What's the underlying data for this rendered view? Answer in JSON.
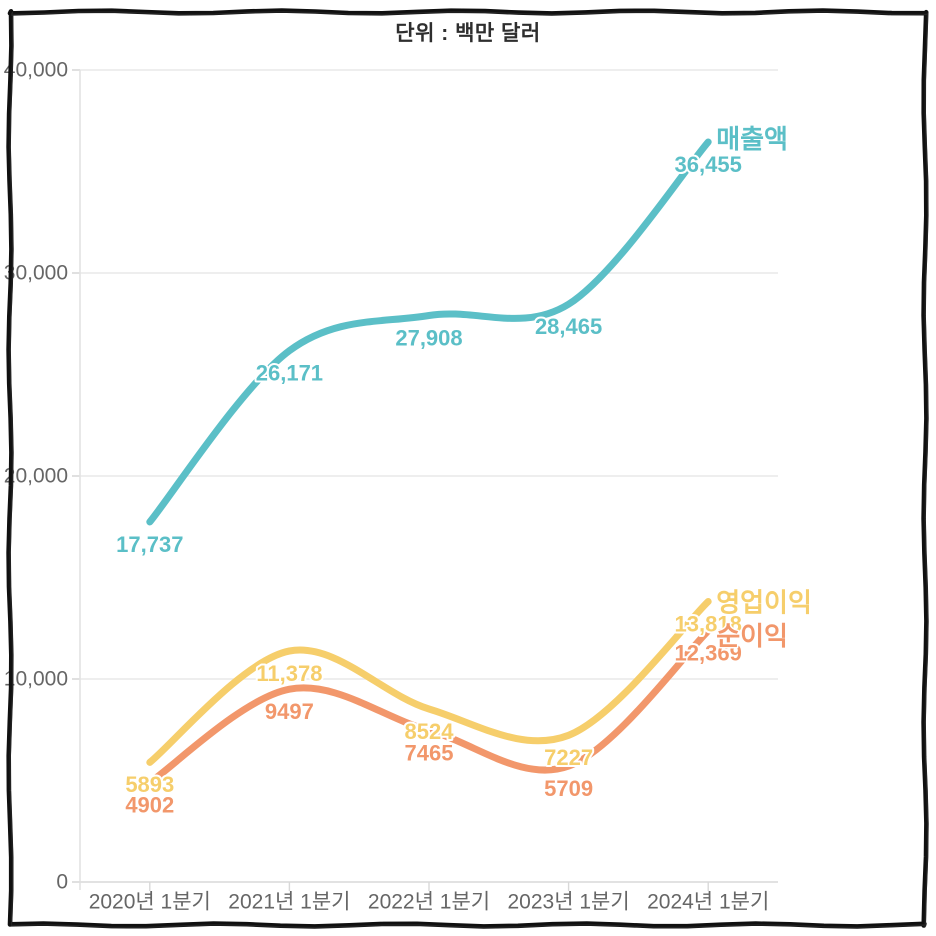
{
  "title": "단위 : 백만 달러",
  "chart_data": {
    "type": "line",
    "categories": [
      "2020년 1분기",
      "2021년 1분기",
      "2022년 1분기",
      "2023년 1분기",
      "2024년 1분기"
    ],
    "series": [
      {
        "key": "revenue",
        "name": "매출액",
        "color": "#5bbfc7",
        "values": [
          17737,
          26171,
          27908,
          28465,
          36455
        ],
        "labels": [
          "17,737",
          "26,171",
          "27,908",
          "28,465",
          "36,455"
        ]
      },
      {
        "key": "operating-profit",
        "name": "영업이익",
        "color": "#f6ce6b",
        "values": [
          5893,
          11378,
          8524,
          7227,
          13818
        ],
        "labels": [
          "5893",
          "11,378",
          "8524",
          "7227",
          "13,818"
        ]
      },
      {
        "key": "net-profit",
        "name": "순이익",
        "color": "#f2976b",
        "values": [
          4902,
          9497,
          7465,
          5709,
          12369
        ],
        "labels": [
          "4902",
          "9497",
          "7465",
          "5709",
          "12,369"
        ]
      }
    ],
    "y_tick_labels": [
      "0",
      "10,000",
      "20,000",
      "30,000",
      "40,000"
    ],
    "y_tick_values": [
      0,
      10000,
      20000,
      30000,
      40000
    ],
    "ylim": [
      0,
      40000
    ],
    "xlabel": "",
    "ylabel": "",
    "grid": true,
    "legend_position": "line-end"
  }
}
